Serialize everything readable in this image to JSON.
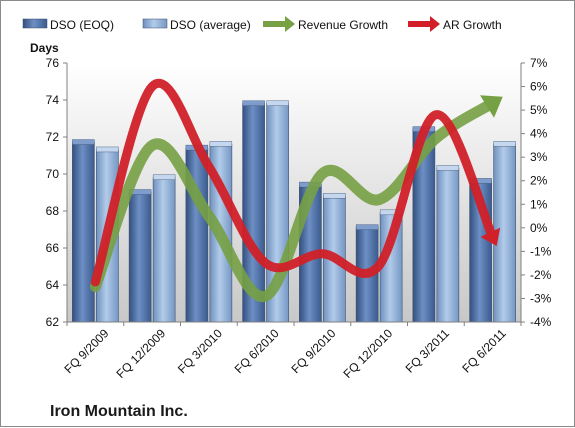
{
  "chart_data": {
    "type": "bar",
    "company": "Iron Mountain Inc.",
    "ylabel": "Days",
    "ylim": [
      62,
      76
    ],
    "y2lim": [
      -4,
      7
    ],
    "yticks": [
      62,
      64,
      66,
      68,
      70,
      72,
      74,
      76
    ],
    "y2ticks": [
      "-4%",
      "-3%",
      "-2%",
      "-1%",
      "0%",
      "1%",
      "2%",
      "3%",
      "4%",
      "5%",
      "6%",
      "7%"
    ],
    "grid": false,
    "legend_position": "top",
    "categories": [
      "FQ 9/2009",
      "FQ 12/2009",
      "FQ 3/2010",
      "FQ 6/2010",
      "FQ 9/2010",
      "FQ 12/2010",
      "FQ 3/2011",
      "FQ 6/2011"
    ],
    "series": [
      {
        "name": "DSO (EOQ)",
        "type": "bar",
        "axis": "left",
        "color": "#4f6fa6",
        "values": [
          71.7,
          69.0,
          71.4,
          73.8,
          69.4,
          67.1,
          72.4,
          69.6
        ]
      },
      {
        "name": "DSO (average)",
        "type": "bar",
        "axis": "left",
        "color": "#8fb0d8",
        "values": [
          71.3,
          69.8,
          71.6,
          73.8,
          68.8,
          67.9,
          70.3,
          71.6
        ]
      },
      {
        "name": "Revenue Growth",
        "type": "line",
        "axis": "right",
        "color": "#76a044",
        "values": [
          -2.5,
          3.5,
          0.5,
          -2.9,
          2.3,
          1.2,
          3.8,
          5.3
        ]
      },
      {
        "name": "AR Growth",
        "type": "line",
        "axis": "right",
        "color": "#d12028",
        "values": [
          -2.3,
          6.0,
          2.6,
          -1.5,
          -1.1,
          -1.6,
          4.8,
          -0.4
        ]
      }
    ]
  }
}
